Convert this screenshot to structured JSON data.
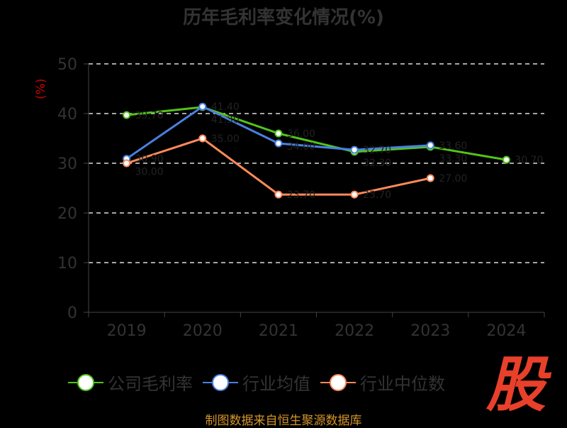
{
  "chart_data": {
    "type": "line",
    "title": "历年毛利率变化情况(%)",
    "ylabel": "(%)",
    "xlabel": "",
    "categories": [
      "2019",
      "2020",
      "2021",
      "2022",
      "2023",
      "2024"
    ],
    "ylim": [
      0,
      50
    ],
    "yticks": [
      0,
      10,
      20,
      30,
      40,
      50
    ],
    "grid": true,
    "legend_position": "bottom",
    "series": [
      {
        "name": "公司毛利率",
        "color": "#52c41a",
        "values": [
          39.7,
          41.3,
          36.0,
          32.3,
          33.3,
          30.7
        ]
      },
      {
        "name": "行业均值",
        "color": "#4a80e0",
        "values": [
          30.9,
          41.4,
          34.0,
          32.7,
          33.6,
          null
        ]
      },
      {
        "name": "行业中位数",
        "color": "#ff8a5b",
        "values": [
          30.0,
          35.0,
          23.7,
          23.7,
          27.0,
          null
        ]
      }
    ]
  },
  "source": "制图数据来自恒生聚源数据库",
  "logo_text": "股"
}
